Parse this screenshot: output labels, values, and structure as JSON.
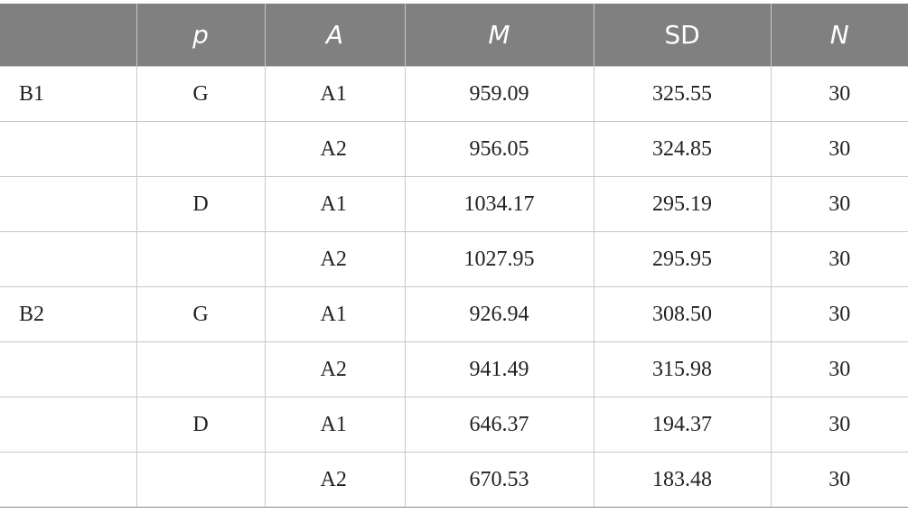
{
  "header": {
    "col0": "",
    "col1": "p",
    "col2": "A",
    "col3": "M",
    "col4": "SD",
    "col5": "N"
  },
  "rows": [
    {
      "b": "B1",
      "p": "G",
      "a": "A1",
      "m": "959.09",
      "sd": "325.55",
      "n": "30"
    },
    {
      "b": "",
      "p": "",
      "a": "A2",
      "m": "956.05",
      "sd": "324.85",
      "n": "30"
    },
    {
      "b": "",
      "p": "D",
      "a": "A1",
      "m": "1034.17",
      "sd": "295.19",
      "n": "30"
    },
    {
      "b": "",
      "p": "",
      "a": "A2",
      "m": "1027.95",
      "sd": "295.95",
      "n": "30"
    },
    {
      "b": "B2",
      "p": "G",
      "a": "A1",
      "m": "926.94",
      "sd": "308.50",
      "n": "30"
    },
    {
      "b": "",
      "p": "",
      "a": "A2",
      "m": "941.49",
      "sd": "315.98",
      "n": "30"
    },
    {
      "b": "",
      "p": "D",
      "a": "A1",
      "m": "646.37",
      "sd": "194.37",
      "n": "30"
    },
    {
      "b": "",
      "p": "",
      "a": "A2",
      "m": "670.53",
      "sd": "183.48",
      "n": "30"
    }
  ],
  "colors": {
    "header_bg": "#808080",
    "header_text": "#ffffff",
    "grid": "#c8c8c8"
  }
}
